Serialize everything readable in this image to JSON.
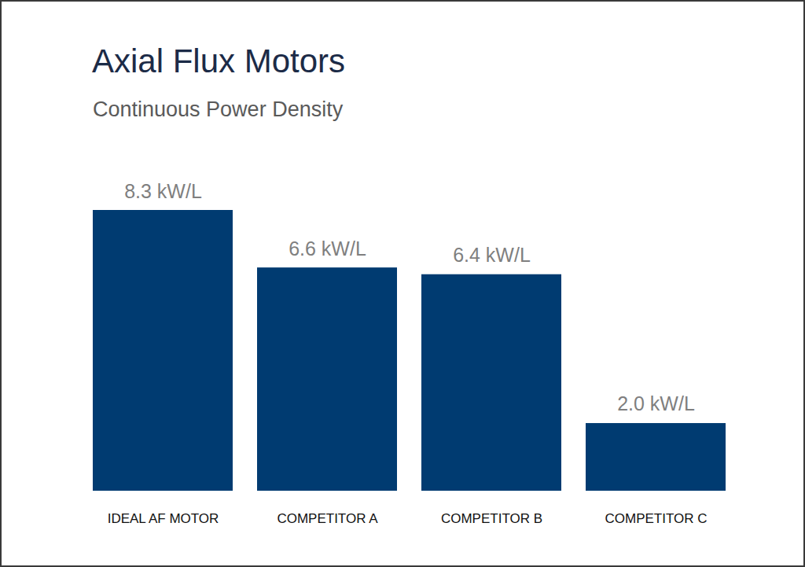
{
  "chart_data": {
    "type": "bar",
    "title": "Axial Flux Motors",
    "subtitle": "Continuous Power Density",
    "categories": [
      "IDEAL AF MOTOR",
      "COMPETITOR A",
      "COMPETITOR B",
      "COMPETITOR C"
    ],
    "values": [
      8.3,
      6.6,
      6.4,
      2.0
    ],
    "value_labels": [
      "8.3 kW/L",
      "6.6 kW/L",
      "6.4 kW/L",
      "2.0 kW/L"
    ],
    "color": "#003b71",
    "data_labels": true,
    "tick_labels": "x",
    "grid": false
  }
}
